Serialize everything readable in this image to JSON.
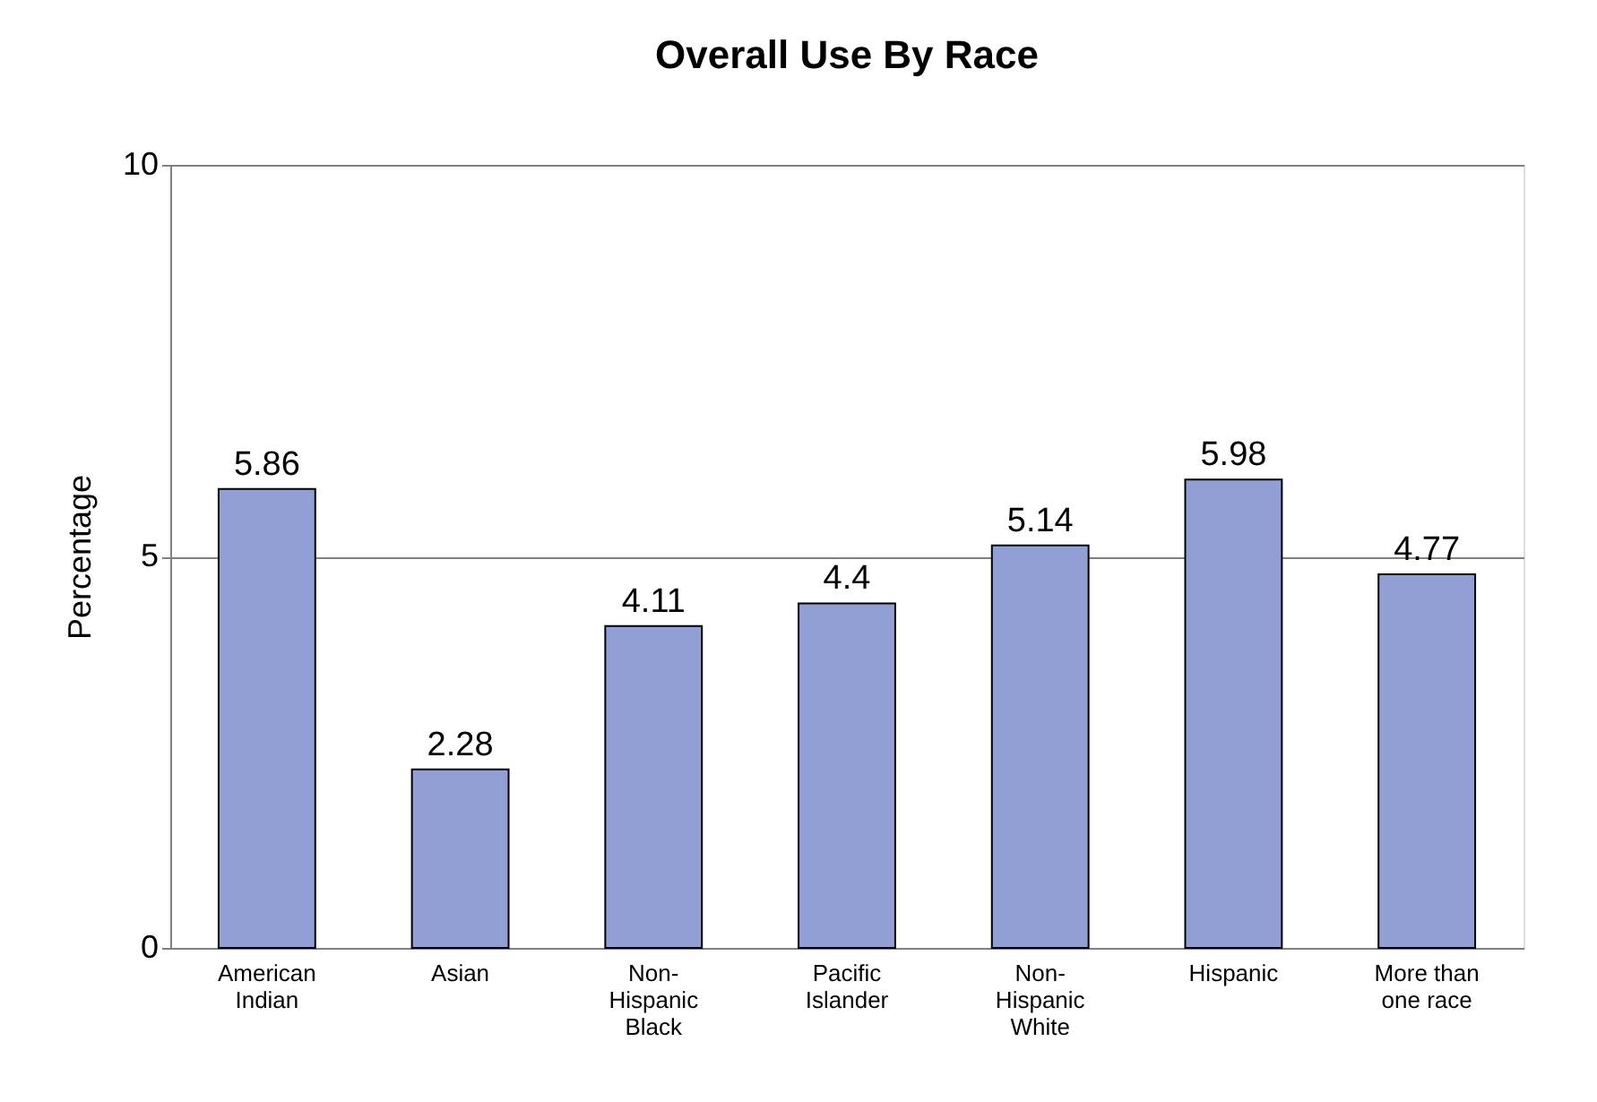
{
  "chart_data": {
    "type": "bar",
    "title": "Overall Use By Race",
    "ylabel": "Percentage",
    "categories": [
      "American Indian",
      "Asian",
      "Non-Hispanic Black",
      "Pacific Islander",
      "Non-Hispanic White",
      "Hispanic",
      "More than one race"
    ],
    "values": [
      5.86,
      2.28,
      4.11,
      4.4,
      5.14,
      5.98,
      4.77
    ],
    "color": "#929fd4",
    "ylim": [
      0,
      10
    ],
    "yticks": [
      0,
      5,
      10
    ],
    "grid": "y",
    "data_labels": true
  }
}
